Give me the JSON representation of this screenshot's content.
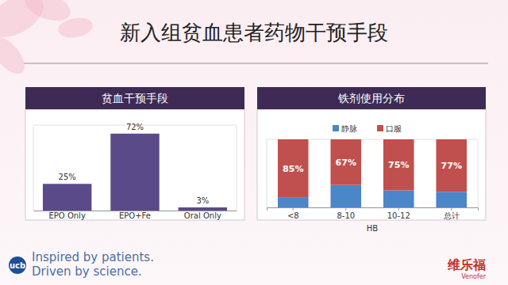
{
  "page": {
    "title": "新入组贫血患者药物干预手段",
    "logo": "ucb",
    "footer": [
      "Inspired by patients.",
      "Driven by science."
    ],
    "brand": "维乐福",
    "brand_en": "Venofer"
  },
  "chart_data": [
    {
      "type": "bar",
      "title": "贫血干预手段",
      "categories": [
        "EPO Only",
        "EPO+Fe",
        "Oral Only"
      ],
      "values": [
        25,
        72,
        3
      ],
      "value_labels": [
        "25%",
        "72%",
        "3%"
      ],
      "data_labels": true,
      "color": "#5b4a8a",
      "ylim": [
        0,
        80
      ],
      "tick_labels": "x"
    },
    {
      "type": "bar",
      "title": "铁剂使用分布",
      "stacked": true,
      "categories": [
        "<8",
        "8-10",
        "10-12",
        "总计"
      ],
      "x_label": "HB",
      "series": [
        {
          "name": "静脉",
          "color": "#4a86c8",
          "values": [
            15,
            33,
            25,
            23
          ]
        },
        {
          "name": "口服",
          "color": "#c0504d",
          "values": [
            85,
            67,
            75,
            77
          ],
          "value_labels": [
            "85%",
            "67%",
            "75%",
            "77%"
          ],
          "data_labels": true
        }
      ],
      "ylim": [
        0,
        100
      ],
      "legend": "top",
      "tick_labels": "x"
    }
  ]
}
